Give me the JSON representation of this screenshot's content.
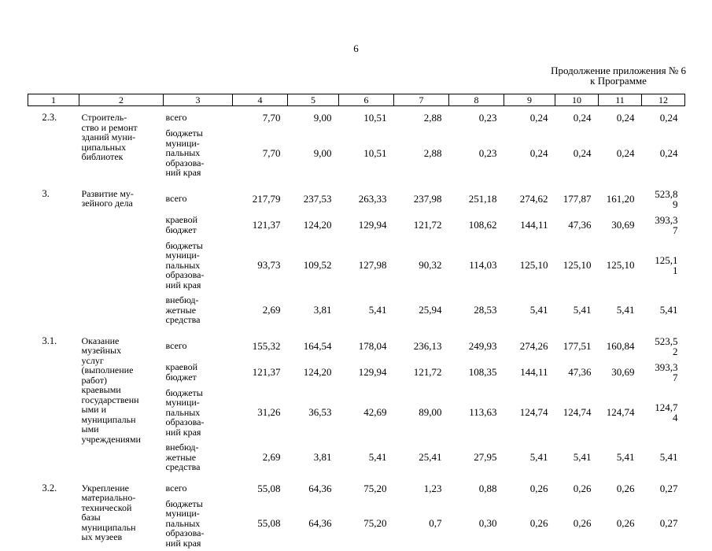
{
  "page": {
    "number": "6",
    "continuation": "Продолжение приложения № 6",
    "continuation_sub": "к Программе"
  },
  "table": {
    "columns": [
      "1",
      "2",
      "3",
      "4",
      "5",
      "6",
      "7",
      "8",
      "9",
      "10",
      "11",
      "12"
    ],
    "rows": [
      {
        "num": "2.3.",
        "name": "Строитель-\nство и ремонт\nзданий муни-\nципальных\nбиблиотек",
        "subrows": [
          {
            "type": "всего",
            "values": [
              "7,70",
              "9,00",
              "10,51",
              "2,88",
              "0,23",
              "0,24",
              "0,24",
              "0,24",
              "0,24"
            ]
          },
          {
            "type": "бюджеты\nмуници-\nпальных\nобразова-\nний края",
            "values": [
              "7,70",
              "9,00",
              "10,51",
              "2,88",
              "0,23",
              "0,24",
              "0,24",
              "0,24",
              "0,24"
            ]
          }
        ]
      },
      {
        "num": "3.",
        "name": "Развитие му-\nзейного дела",
        "subrows": [
          {
            "type": "всего",
            "values": [
              "217,79",
              "237,53",
              "263,33",
              "237,98",
              "251,18",
              "274,62",
              "177,87",
              "161,20",
              "523,8\n9"
            ]
          },
          {
            "type": "краевой\nбюджет",
            "values": [
              "121,37",
              "124,20",
              "129,94",
              "121,72",
              "108,62",
              "144,11",
              "47,36",
              "30,69",
              "393,3\n7"
            ]
          },
          {
            "type": "бюджеты\nмуници-\nпальных\nобразова-\nний края",
            "values": [
              "93,73",
              "109,52",
              "127,98",
              "90,32",
              "114,03",
              "125,10",
              "125,10",
              "125,10",
              "125,1\n1"
            ]
          },
          {
            "type": "внебюд-\nжетные\nсредства",
            "values": [
              "2,69",
              "3,81",
              "5,41",
              "25,94",
              "28,53",
              "5,41",
              "5,41",
              "5,41",
              "5,41"
            ]
          }
        ]
      },
      {
        "num": "3.1.",
        "name": "Оказание\nмузейных\nуслуг\n(выполнение\nработ)\nкраевыми\nгосударственн\nыми и\nмуниципальн\nыми\nучреждениями",
        "subrows": [
          {
            "type": "всего",
            "values": [
              "155,32",
              "164,54",
              "178,04",
              "236,13",
              "249,93",
              "274,26",
              "177,51",
              "160,84",
              "523,5\n2"
            ]
          },
          {
            "type": "краевой\nбюджет",
            "values": [
              "121,37",
              "124,20",
              "129,94",
              "121,72",
              "108,35",
              "144,11",
              "47,36",
              "30,69",
              "393,3\n7"
            ]
          },
          {
            "type": "бюджеты\nмуници-\nпальных\nобразова-\nний края",
            "values": [
              "31,26",
              "36,53",
              "42,69",
              "89,00",
              "113,63",
              "124,74",
              "124,74",
              "124,74",
              "124,7\n4"
            ]
          },
          {
            "type": "внебюд-\nжетные\nсредства",
            "values": [
              "2,69",
              "3,81",
              "5,41",
              "25,41",
              "27,95",
              "5,41",
              "5,41",
              "5,41",
              "5,41"
            ]
          }
        ]
      },
      {
        "num": "3.2.",
        "name": "Укрепление\nматериально-\nтехнической\nбазы\nмуниципальн\nых музеев",
        "subrows": [
          {
            "type": "всего",
            "values": [
              "55,08",
              "64,36",
              "75,20",
              "1,23",
              "0,88",
              "0,26",
              "0,26",
              "0,26",
              "0,27"
            ]
          },
          {
            "type": "бюджеты\nмуници-\nпальных\nобразова-\nний края",
            "values": [
              "55,08",
              "64,36",
              "75,20",
              "0,7",
              "0,30",
              "0,26",
              "0,26",
              "0,26",
              "0,27"
            ]
          }
        ]
      }
    ]
  }
}
